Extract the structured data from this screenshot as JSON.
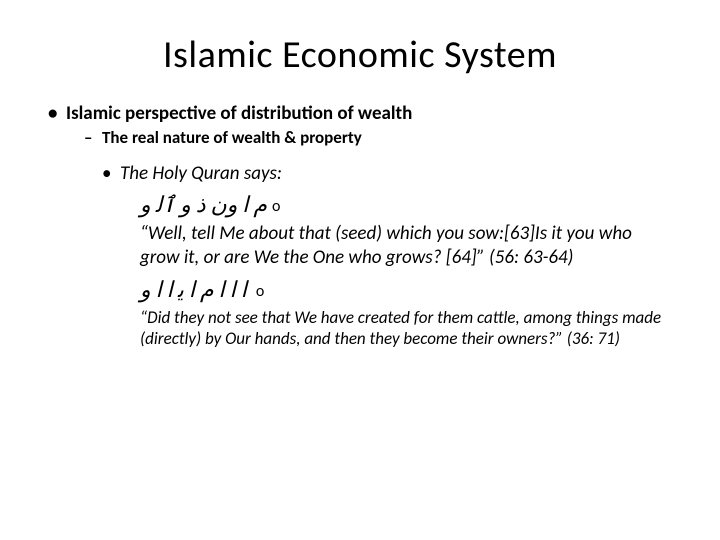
{
  "title": "Islamic Economic System",
  "bullets": {
    "l1": "Islamic perspective of distribution of wealth",
    "l2": "The real nature of wealth & property",
    "l3": "The Holy Quran says:",
    "ar1_marker": "o",
    "ar1_text": "ﻡ ﺍ ﻭﻥ ﺫ ﻭ  ٱﻟ ﻭ",
    "quote1": "“Well, tell Me about that (seed) which you sow:[63]Is it you who grow it, or are We the One who grows? [64]” (56: 63-64)",
    "ar2_marker": "o",
    "ar2_text": "ﺍ ﺍ ﺍ ﻡ  ﺍ ﻳ ﺍ  ﺍ ﻭ",
    "quote2": "“Did they not see that We have created for them cattle, among things made (directly) by Our hands, and then they become their owners?” (36: 71)"
  },
  "style": {
    "background_color": "#ffffff",
    "text_color": "#000000",
    "title_fontsize": 38,
    "body_fontsize": 19,
    "small_fontsize": 17,
    "arabic_fontsize": 22
  }
}
